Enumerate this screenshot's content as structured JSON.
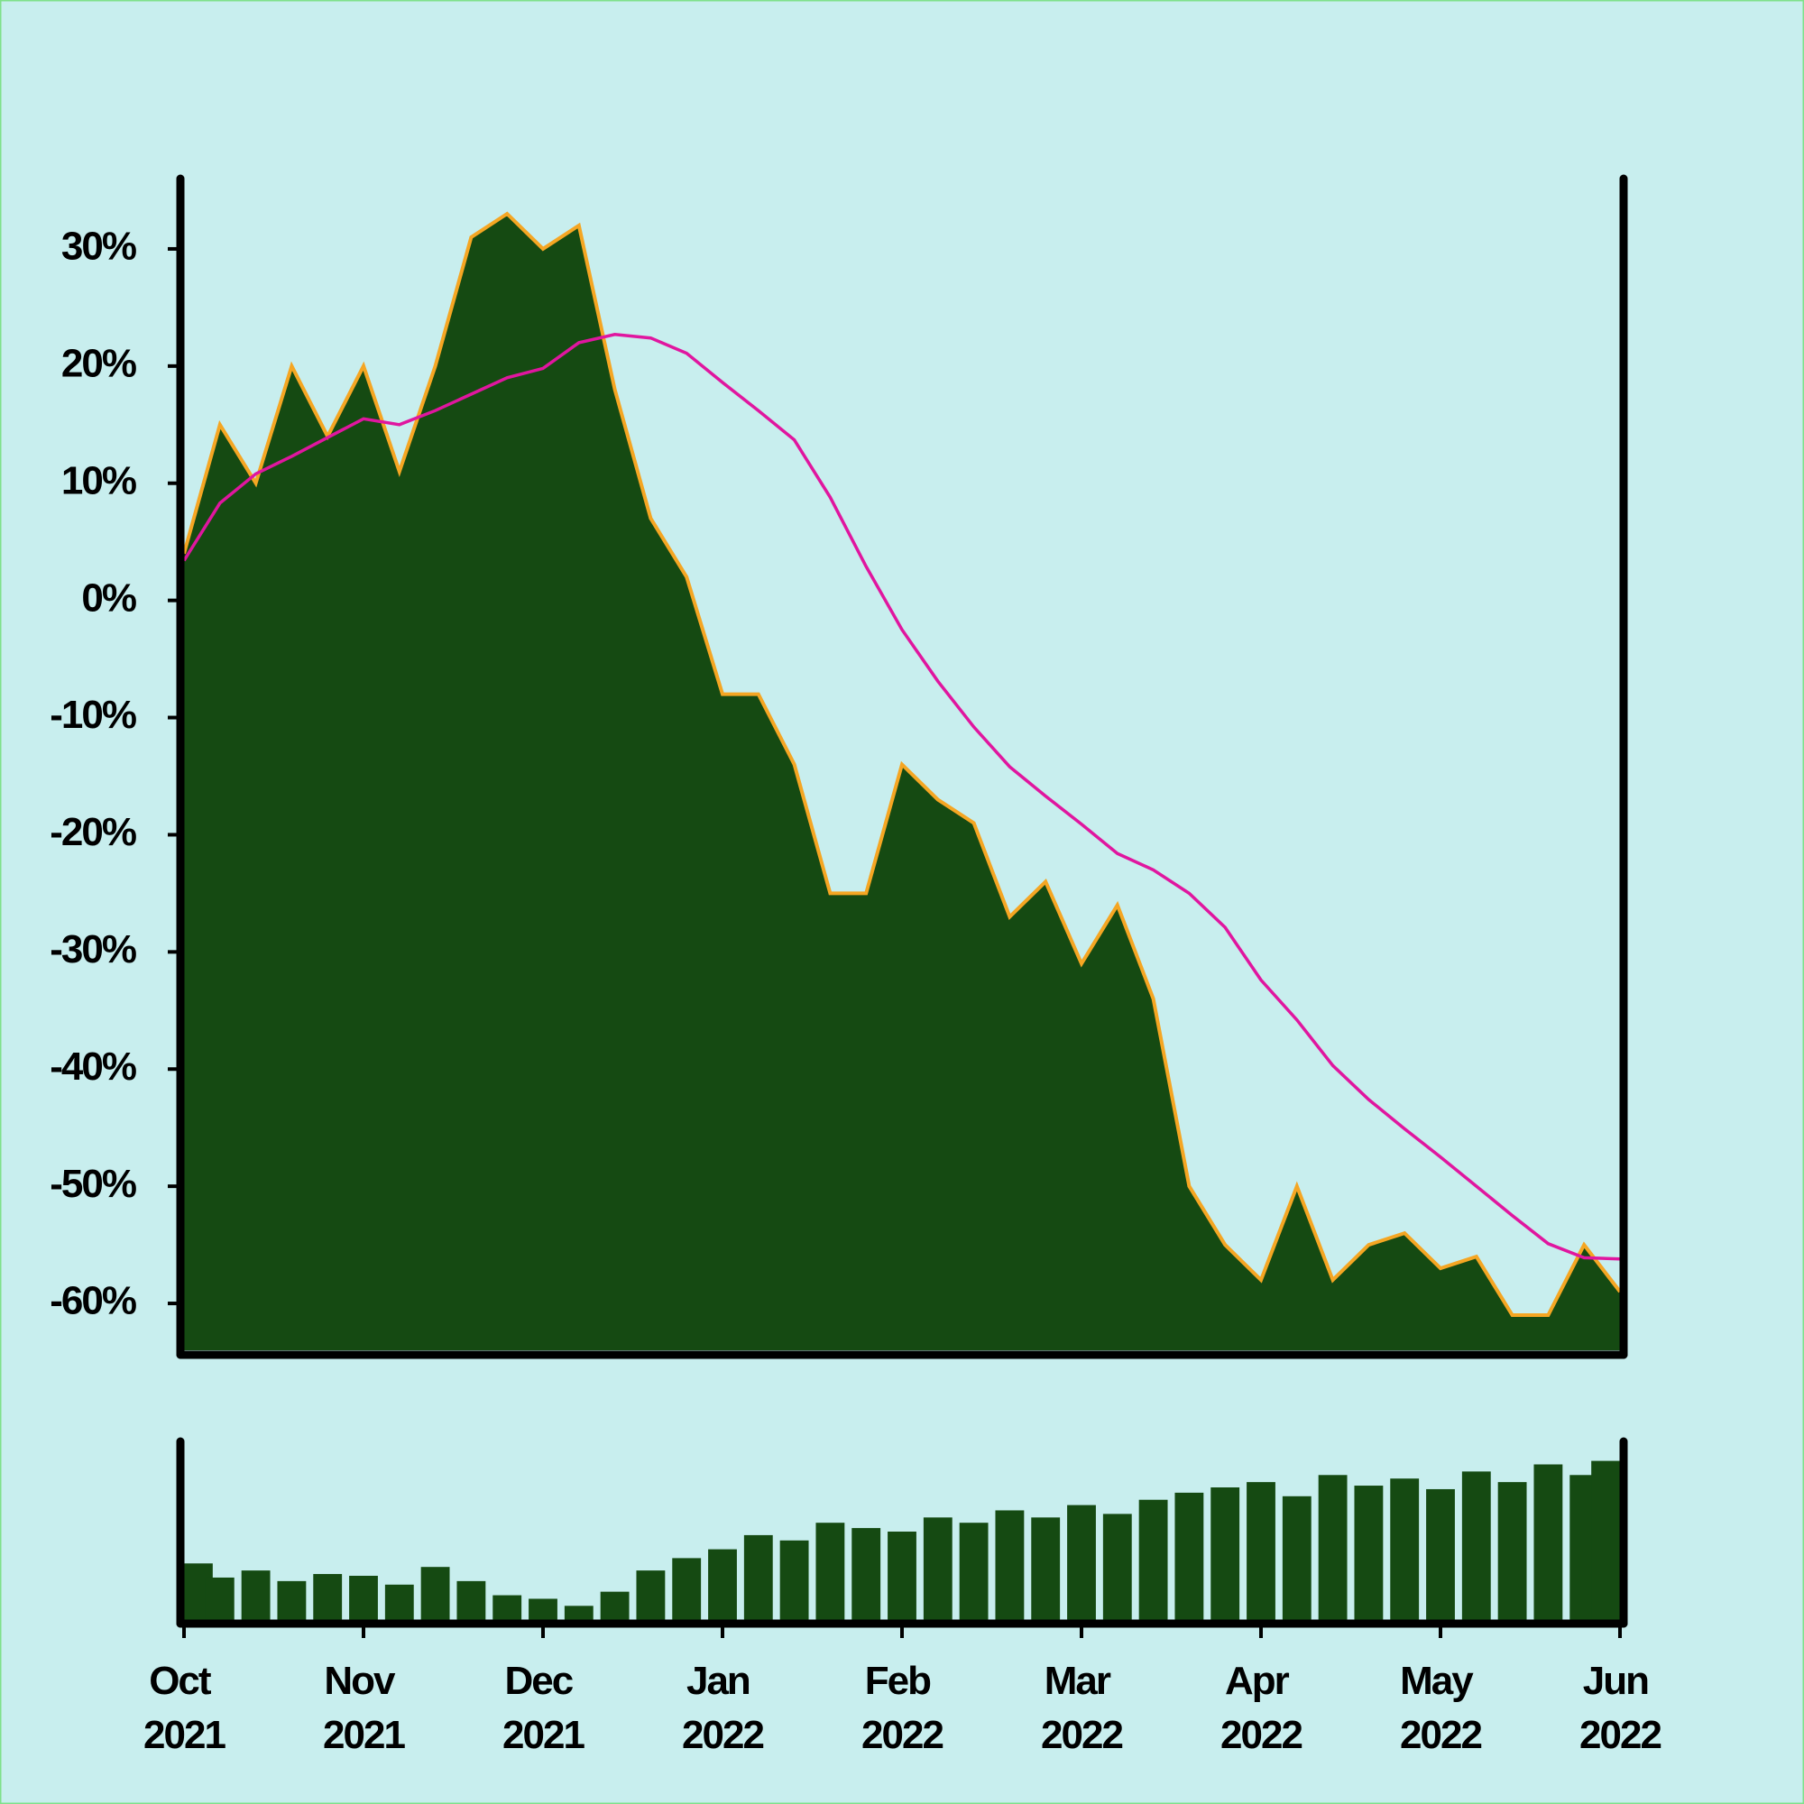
{
  "chart_data": [
    {
      "type": "area",
      "x": [
        0,
        0.2,
        0.4,
        0.6,
        0.8,
        1,
        1.2,
        1.4,
        1.6,
        1.8,
        2,
        2.2,
        2.4,
        2.6,
        2.8,
        3,
        3.2,
        3.4,
        3.6,
        3.8,
        4,
        4.2,
        4.4,
        4.6,
        4.8,
        5,
        5.2,
        5.4,
        5.6,
        5.8,
        6,
        6.2,
        6.4,
        6.6,
        6.8,
        7,
        7.2,
        7.4,
        7.6,
        7.8,
        8
      ],
      "xlim": [
        0,
        8
      ],
      "ylim": [
        -64,
        36
      ],
      "yticks": [
        {
          "value": -60,
          "label": "-60%"
        },
        {
          "value": -50,
          "label": "-50%"
        },
        {
          "value": -40,
          "label": "-40%"
        },
        {
          "value": -30,
          "label": "-30%"
        },
        {
          "value": -20,
          "label": "-20%"
        },
        {
          "value": -10,
          "label": "-10%"
        },
        {
          "value": 0,
          "label": "0%"
        },
        {
          "value": 10,
          "label": "10%"
        },
        {
          "value": 20,
          "label": "20%"
        },
        {
          "value": 30,
          "label": "30%"
        }
      ],
      "series": [
        {
          "color": "#154a12",
          "values": [
            4,
            15,
            10,
            20,
            14,
            20,
            11,
            20,
            31,
            33,
            30,
            32,
            18,
            7,
            2,
            -8,
            -8,
            -14,
            -25,
            -25,
            -14,
            -17,
            -19,
            -27,
            -24,
            -31,
            -26,
            -34,
            -50,
            -55,
            -58,
            -50,
            -58,
            -55,
            -54,
            -57,
            -56,
            -61,
            -61,
            -55,
            -59
          ]
        },
        {
          "color": "#e0169f",
          "values": [
            3.4,
            8.3,
            10.8,
            12.3,
            13.9,
            15.5,
            15,
            16.2,
            17.6,
            19,
            19.8,
            22,
            22.7,
            22.4,
            21.1,
            18.6,
            16.2,
            13.7,
            8.8,
            2.9,
            -2.5,
            -6.9,
            -10.8,
            -14.2,
            -16.7,
            -19.1,
            -21.6,
            -23,
            -25,
            -27.9,
            -32.4,
            -35.8,
            -39.7,
            -42.6,
            -45.1,
            -47.5,
            -50,
            -52.5,
            -54.9,
            -56.1,
            -56.2
          ]
        }
      ]
    },
    {
      "type": "bar",
      "x": [
        0,
        0.2,
        0.4,
        0.6,
        0.8,
        1,
        1.2,
        1.4,
        1.6,
        1.8,
        2,
        2.2,
        2.4,
        2.6,
        2.8,
        3,
        3.2,
        3.4,
        3.6,
        3.8,
        4,
        4.2,
        4.4,
        4.6,
        4.8,
        5,
        5.2,
        5.4,
        5.6,
        5.8,
        6,
        6.2,
        6.4,
        6.6,
        6.8,
        7,
        7.2,
        7.4,
        7.6,
        7.8,
        8
      ],
      "xlim": [
        0,
        8
      ],
      "xticks": [
        {
          "value": 0,
          "label": "Oct 2021"
        },
        {
          "value": 1,
          "label": "Nov 2021"
        },
        {
          "value": 2,
          "label": "Dec 2021"
        },
        {
          "value": 3,
          "label": "Jan 2022"
        },
        {
          "value": 4,
          "label": "Feb 2022"
        },
        {
          "value": 5,
          "label": "Mar 2022"
        },
        {
          "value": 6,
          "label": "Apr 2022"
        },
        {
          "value": 7,
          "label": "May 2022"
        },
        {
          "value": 8,
          "label": "Jun 2022"
        }
      ],
      "ylim": [
        0,
        100
      ],
      "color": "#154a12",
      "values": [
        32,
        24,
        28,
        22,
        26,
        25,
        20,
        30,
        22,
        14,
        12,
        8,
        16,
        28,
        35,
        40,
        48,
        45,
        55,
        52,
        50,
        58,
        55,
        62,
        58,
        65,
        60,
        68,
        72,
        75,
        78,
        70,
        82,
        76,
        80,
        74,
        84,
        78,
        88,
        82,
        90
      ]
    }
  ]
}
